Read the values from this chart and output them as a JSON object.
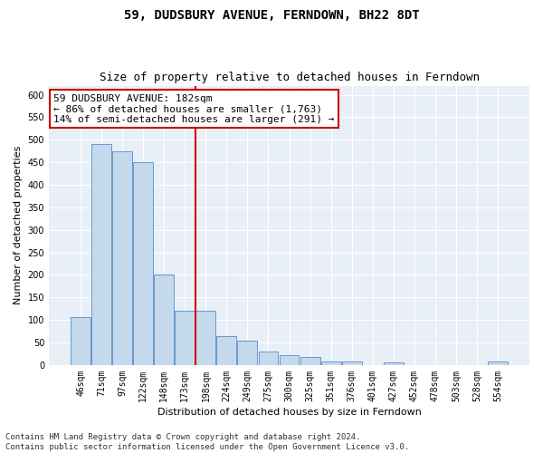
{
  "title": "59, DUDSBURY AVENUE, FERNDOWN, BH22 8DT",
  "subtitle": "Size of property relative to detached houses in Ferndown",
  "xlabel": "Distribution of detached houses by size in Ferndown",
  "ylabel": "Number of detached properties",
  "categories": [
    "46sqm",
    "71sqm",
    "97sqm",
    "122sqm",
    "148sqm",
    "173sqm",
    "198sqm",
    "224sqm",
    "249sqm",
    "275sqm",
    "300sqm",
    "325sqm",
    "351sqm",
    "376sqm",
    "401sqm",
    "427sqm",
    "452sqm",
    "478sqm",
    "503sqm",
    "528sqm",
    "554sqm"
  ],
  "values": [
    107,
    490,
    475,
    450,
    200,
    120,
    120,
    65,
    55,
    30,
    22,
    18,
    8,
    8,
    0,
    5,
    0,
    0,
    0,
    0,
    8
  ],
  "bar_color": "#c5d9ed",
  "bar_edgecolor": "#6699cc",
  "vline_color": "#cc0000",
  "vline_index": 5.5,
  "annotation_text": "59 DUDSBURY AVENUE: 182sqm\n← 86% of detached houses are smaller (1,763)\n14% of semi-detached houses are larger (291) →",
  "annotation_box_edgecolor": "#cc0000",
  "ylim": [
    0,
    620
  ],
  "yticks": [
    0,
    50,
    100,
    150,
    200,
    250,
    300,
    350,
    400,
    450,
    500,
    550,
    600
  ],
  "footer": "Contains HM Land Registry data © Crown copyright and database right 2024.\nContains public sector information licensed under the Open Government Licence v3.0.",
  "bg_color": "#e8eff7",
  "grid_color": "#ffffff",
  "title_fontsize": 10,
  "subtitle_fontsize": 9,
  "axis_label_fontsize": 8,
  "tick_fontsize": 7,
  "annotation_fontsize": 8,
  "footer_fontsize": 6.5
}
